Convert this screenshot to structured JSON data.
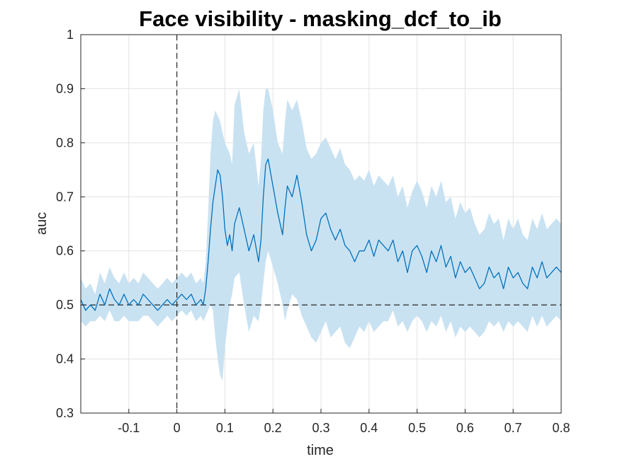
{
  "chart_data": {
    "type": "line",
    "title": "Face visibility - masking_dcf_to_ib",
    "xlabel": "time",
    "ylabel": "auc",
    "xlim": [
      -0.2,
      0.8
    ],
    "ylim": [
      0.3,
      1.0
    ],
    "xticks": [
      -0.1,
      0,
      0.1,
      0.2,
      0.3,
      0.4,
      0.5,
      0.6,
      0.7,
      0.8
    ],
    "xtick_labels": [
      "-0.1",
      "0",
      "0.1",
      "0.2",
      "0.3",
      "0.4",
      "0.5",
      "0.6",
      "0.7",
      "0.8"
    ],
    "yticks": [
      0.3,
      0.4,
      0.5,
      0.6,
      0.7,
      0.8,
      0.9,
      1.0
    ],
    "ytick_labels": [
      "0.3",
      "0.4",
      "0.5",
      "0.6",
      "0.7",
      "0.8",
      "0.9",
      "1"
    ],
    "grid": true,
    "reference_lines": {
      "chance_level": 0.5,
      "stimulus_onset": 0
    },
    "colors": {
      "line": "#0072BD",
      "band": "#C9E2F2",
      "reference": "#262626",
      "grid": "#E3E3E3",
      "axis": "#262626"
    },
    "series": [
      {
        "x": [
          -0.2,
          -0.19,
          -0.18,
          -0.17,
          -0.16,
          -0.15,
          -0.14,
          -0.13,
          -0.12,
          -0.11,
          -0.1,
          -0.09,
          -0.08,
          -0.07,
          -0.06,
          -0.05,
          -0.04,
          -0.03,
          -0.02,
          -0.01,
          0,
          0.01,
          0.02,
          0.03,
          0.04,
          0.05,
          0.055,
          0.06,
          0.065,
          0.07,
          0.075,
          0.08,
          0.085,
          0.09,
          0.095,
          0.1,
          0.105,
          0.11,
          0.115,
          0.12,
          0.13,
          0.14,
          0.15,
          0.16,
          0.17,
          0.175,
          0.18,
          0.185,
          0.19,
          0.2,
          0.21,
          0.22,
          0.225,
          0.23,
          0.24,
          0.25,
          0.26,
          0.27,
          0.28,
          0.29,
          0.3,
          0.31,
          0.32,
          0.33,
          0.34,
          0.35,
          0.36,
          0.37,
          0.38,
          0.39,
          0.4,
          0.41,
          0.42,
          0.43,
          0.44,
          0.45,
          0.46,
          0.47,
          0.48,
          0.49,
          0.5,
          0.51,
          0.52,
          0.53,
          0.54,
          0.55,
          0.56,
          0.57,
          0.58,
          0.59,
          0.6,
          0.61,
          0.62,
          0.63,
          0.64,
          0.65,
          0.66,
          0.67,
          0.68,
          0.69,
          0.7,
          0.71,
          0.72,
          0.73,
          0.74,
          0.75,
          0.76,
          0.77,
          0.78,
          0.79,
          0.8
        ],
        "y": [
          0.51,
          0.49,
          0.5,
          0.49,
          0.52,
          0.5,
          0.53,
          0.51,
          0.5,
          0.52,
          0.5,
          0.51,
          0.5,
          0.52,
          0.51,
          0.5,
          0.49,
          0.5,
          0.51,
          0.5,
          0.51,
          0.52,
          0.51,
          0.52,
          0.5,
          0.51,
          0.5,
          0.53,
          0.58,
          0.64,
          0.69,
          0.72,
          0.75,
          0.74,
          0.7,
          0.64,
          0.61,
          0.63,
          0.6,
          0.65,
          0.68,
          0.64,
          0.6,
          0.63,
          0.58,
          0.62,
          0.7,
          0.76,
          0.77,
          0.72,
          0.67,
          0.63,
          0.68,
          0.72,
          0.7,
          0.74,
          0.69,
          0.63,
          0.6,
          0.62,
          0.66,
          0.67,
          0.64,
          0.62,
          0.64,
          0.61,
          0.6,
          0.58,
          0.6,
          0.6,
          0.62,
          0.59,
          0.62,
          0.61,
          0.6,
          0.62,
          0.58,
          0.6,
          0.56,
          0.6,
          0.61,
          0.59,
          0.56,
          0.6,
          0.58,
          0.61,
          0.57,
          0.59,
          0.55,
          0.58,
          0.56,
          0.57,
          0.55,
          0.53,
          0.54,
          0.57,
          0.55,
          0.56,
          0.53,
          0.57,
          0.55,
          0.56,
          0.54,
          0.53,
          0.57,
          0.55,
          0.58,
          0.55,
          0.56,
          0.57,
          0.56
        ],
        "lower": [
          0.47,
          0.46,
          0.47,
          0.47,
          0.48,
          0.47,
          0.49,
          0.47,
          0.47,
          0.48,
          0.47,
          0.47,
          0.47,
          0.48,
          0.48,
          0.47,
          0.46,
          0.47,
          0.48,
          0.47,
          0.48,
          0.49,
          0.48,
          0.49,
          0.47,
          0.48,
          0.47,
          0.48,
          0.49,
          0.5,
          0.49,
          0.44,
          0.4,
          0.37,
          0.36,
          0.42,
          0.46,
          0.5,
          0.52,
          0.55,
          0.56,
          0.5,
          0.45,
          0.48,
          0.47,
          0.5,
          0.54,
          0.58,
          0.6,
          0.57,
          0.54,
          0.5,
          0.47,
          0.49,
          0.52,
          0.51,
          0.48,
          0.46,
          0.44,
          0.43,
          0.45,
          0.47,
          0.44,
          0.45,
          0.46,
          0.43,
          0.42,
          0.44,
          0.46,
          0.45,
          0.47,
          0.45,
          0.46,
          0.47,
          0.47,
          0.49,
          0.46,
          0.47,
          0.45,
          0.47,
          0.48,
          0.47,
          0.45,
          0.47,
          0.46,
          0.48,
          0.45,
          0.47,
          0.44,
          0.46,
          0.45,
          0.46,
          0.45,
          0.44,
          0.45,
          0.47,
          0.46,
          0.47,
          0.45,
          0.47,
          0.46,
          0.47,
          0.46,
          0.45,
          0.48,
          0.46,
          0.48,
          0.46,
          0.47,
          0.48,
          0.47
        ],
        "upper": [
          0.55,
          0.53,
          0.54,
          0.52,
          0.56,
          0.54,
          0.57,
          0.55,
          0.54,
          0.56,
          0.54,
          0.55,
          0.54,
          0.56,
          0.55,
          0.54,
          0.53,
          0.54,
          0.55,
          0.54,
          0.55,
          0.56,
          0.55,
          0.56,
          0.54,
          0.55,
          0.54,
          0.58,
          0.67,
          0.78,
          0.84,
          0.86,
          0.85,
          0.84,
          0.82,
          0.8,
          0.79,
          0.78,
          0.76,
          0.87,
          0.9,
          0.82,
          0.78,
          0.8,
          0.72,
          0.77,
          0.86,
          0.9,
          0.9,
          0.86,
          0.8,
          0.78,
          0.84,
          0.88,
          0.86,
          0.88,
          0.84,
          0.79,
          0.77,
          0.78,
          0.8,
          0.81,
          0.79,
          0.77,
          0.79,
          0.76,
          0.75,
          0.73,
          0.74,
          0.73,
          0.75,
          0.72,
          0.74,
          0.73,
          0.72,
          0.74,
          0.7,
          0.72,
          0.68,
          0.71,
          0.73,
          0.71,
          0.68,
          0.72,
          0.7,
          0.73,
          0.69,
          0.7,
          0.66,
          0.69,
          0.67,
          0.68,
          0.65,
          0.63,
          0.64,
          0.67,
          0.65,
          0.66,
          0.62,
          0.66,
          0.64,
          0.66,
          0.63,
          0.62,
          0.66,
          0.64,
          0.67,
          0.64,
          0.65,
          0.66,
          0.65
        ]
      }
    ]
  }
}
